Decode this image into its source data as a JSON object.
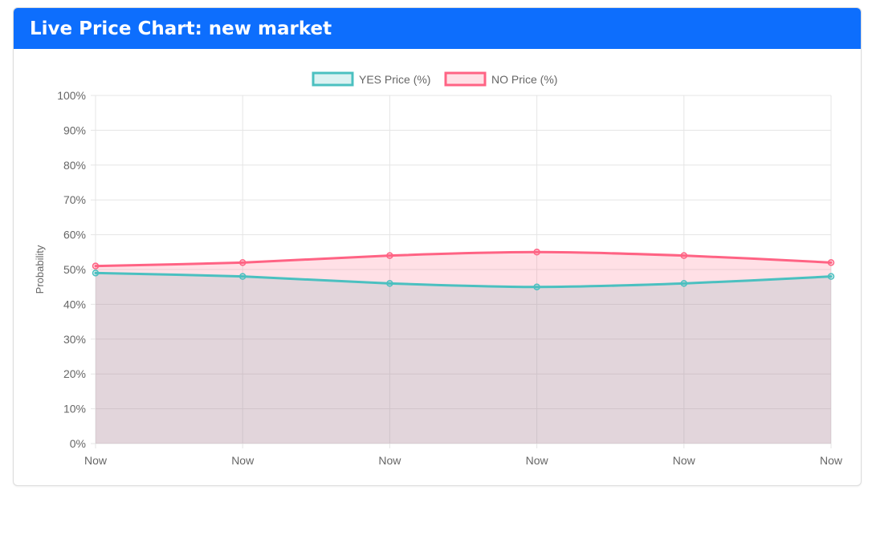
{
  "header": {
    "title": "Live Price Chart: new market"
  },
  "colors": {
    "header_bg": "#0d6efd",
    "yes_line": "#4bc0c0",
    "yes_fill": "rgba(75,192,192,0.2)",
    "no_line": "#ff6384",
    "no_fill": "rgba(255,99,132,0.2)",
    "grid": "#e5e5e5",
    "tick": "#666666"
  },
  "chart_data": {
    "type": "line",
    "title": "",
    "xlabel": "",
    "ylabel": "Probability",
    "categories": [
      "Now",
      "Now",
      "Now",
      "Now",
      "Now",
      "Now"
    ],
    "ylim": [
      0,
      100
    ],
    "yticks": [
      "0%",
      "10%",
      "20%",
      "30%",
      "40%",
      "50%",
      "60%",
      "70%",
      "80%",
      "90%",
      "100%"
    ],
    "grid": true,
    "filled": true,
    "legend_position": "top",
    "series": [
      {
        "name": "YES Price (%)",
        "values": [
          49,
          48,
          46,
          45,
          46,
          48
        ]
      },
      {
        "name": "NO Price (%)",
        "values": [
          51,
          52,
          54,
          55,
          54,
          52
        ]
      }
    ]
  }
}
